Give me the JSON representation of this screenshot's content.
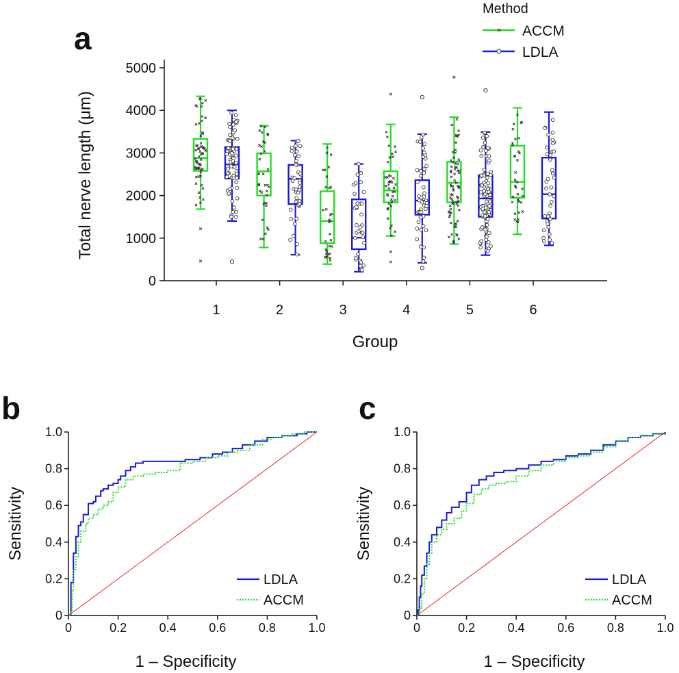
{
  "panel_labels": {
    "a": "a",
    "b": "b",
    "c": "c"
  },
  "colors": {
    "accm": "#22dd22",
    "ldla": "#1a1adb",
    "diag": "#ee2222",
    "axis": "#111111"
  },
  "chart_data": [
    {
      "panel": "a",
      "type": "box",
      "xlabel": "Group",
      "ylabel": "Total nerve length (μm)",
      "ylim": [
        0,
        5000
      ],
      "yticks": [
        0,
        1000,
        2000,
        3000,
        4000,
        5000
      ],
      "categories": [
        "1",
        "2",
        "3",
        "4",
        "5",
        "6"
      ],
      "legend": {
        "title": "Method",
        "placement": "top-right",
        "entries": [
          "ACCM",
          "LDLA"
        ]
      },
      "series": [
        {
          "name": "ACCM",
          "boxes": [
            {
              "whislo": 1680,
              "q1": 2580,
              "med": 2880,
              "q3": 3330,
              "whishi": 4330,
              "fliers": [
                1220,
                460
              ],
              "n": 60
            },
            {
              "whislo": 780,
              "q1": 2000,
              "med": 2570,
              "q3": 2990,
              "whishi": 3640,
              "fliers": [],
              "n": 36
            },
            {
              "whislo": 390,
              "q1": 880,
              "med": 1400,
              "q3": 2100,
              "whishi": 3210,
              "fliers": [],
              "n": 32
            },
            {
              "whislo": 1050,
              "q1": 1840,
              "med": 2120,
              "q3": 2570,
              "whishi": 3670,
              "fliers": [
                4380,
                680,
                440
              ],
              "n": 40
            },
            {
              "whislo": 860,
              "q1": 1840,
              "med": 2300,
              "q3": 2790,
              "whishi": 3840,
              "fliers": [
                4780
              ],
              "n": 75
            },
            {
              "whislo": 1090,
              "q1": 1950,
              "med": 2320,
              "q3": 3170,
              "whishi": 4060,
              "fliers": [],
              "n": 34
            }
          ]
        },
        {
          "name": "LDLA",
          "boxes": [
            {
              "whislo": 1400,
              "q1": 2400,
              "med": 2730,
              "q3": 3140,
              "whishi": 4000,
              "fliers": [
                450
              ],
              "n": 75
            },
            {
              "whislo": 610,
              "q1": 1800,
              "med": 2390,
              "q3": 2720,
              "whishi": 3290,
              "fliers": [],
              "n": 40
            },
            {
              "whislo": 210,
              "q1": 740,
              "med": 1010,
              "q3": 1910,
              "whishi": 2740,
              "fliers": [],
              "n": 34
            },
            {
              "whislo": 420,
              "q1": 1550,
              "med": 1880,
              "q3": 2360,
              "whishi": 3440,
              "fliers": [
                4310,
                300
              ],
              "n": 50
            },
            {
              "whislo": 600,
              "q1": 1500,
              "med": 1930,
              "q3": 2480,
              "whishi": 3490,
              "fliers": [
                4470
              ],
              "n": 90
            },
            {
              "whislo": 830,
              "q1": 1460,
              "med": 2030,
              "q3": 2890,
              "whishi": 3960,
              "fliers": [],
              "n": 40
            }
          ]
        }
      ]
    },
    {
      "panel": "b",
      "type": "line",
      "xlabel": "1 – Specificity",
      "ylabel": "Sensitivity",
      "xlim": [
        0,
        1
      ],
      "ylim": [
        0,
        1
      ],
      "xticks": [
        "0",
        "0.2",
        "0.4",
        "0.6",
        "0.8",
        "1.0"
      ],
      "yticks": [
        "0",
        "0.2",
        "0.4",
        "0.6",
        "0.8",
        "1.0"
      ],
      "legend_placement": "bottom-right",
      "series": [
        {
          "name": "LDLA",
          "style": "solid",
          "x": [
            0,
            0.01,
            0.01,
            0.02,
            0.02,
            0.03,
            0.03,
            0.04,
            0.05,
            0.06,
            0.06,
            0.08,
            0.08,
            0.1,
            0.11,
            0.13,
            0.14,
            0.16,
            0.18,
            0.2,
            0.21,
            0.23,
            0.25,
            0.27,
            0.3,
            0.33,
            0.37,
            0.42,
            0.47,
            0.53,
            0.58,
            0.62,
            0.66,
            0.7,
            0.75,
            0.8,
            0.86,
            0.92,
            0.96,
            1.0
          ],
          "y": [
            0,
            0.03,
            0.18,
            0.25,
            0.34,
            0.36,
            0.43,
            0.49,
            0.51,
            0.53,
            0.55,
            0.59,
            0.61,
            0.62,
            0.65,
            0.68,
            0.69,
            0.71,
            0.72,
            0.74,
            0.76,
            0.79,
            0.81,
            0.83,
            0.84,
            0.84,
            0.84,
            0.84,
            0.85,
            0.86,
            0.88,
            0.89,
            0.91,
            0.93,
            0.95,
            0.97,
            0.98,
            0.99,
            1.0,
            1.0
          ]
        },
        {
          "name": "ACCM",
          "style": "dotted",
          "x": [
            0,
            0.01,
            0.015,
            0.02,
            0.03,
            0.04,
            0.05,
            0.07,
            0.08,
            0.1,
            0.12,
            0.14,
            0.16,
            0.18,
            0.2,
            0.23,
            0.26,
            0.3,
            0.35,
            0.4,
            0.45,
            0.5,
            0.55,
            0.6,
            0.64,
            0.68,
            0.73,
            0.78,
            0.82,
            0.86,
            0.9,
            0.95,
            1.0
          ],
          "y": [
            0,
            0.02,
            0.14,
            0.25,
            0.32,
            0.4,
            0.46,
            0.5,
            0.53,
            0.55,
            0.58,
            0.6,
            0.62,
            0.67,
            0.7,
            0.74,
            0.76,
            0.77,
            0.78,
            0.79,
            0.83,
            0.84,
            0.86,
            0.87,
            0.89,
            0.9,
            0.93,
            0.96,
            0.97,
            0.98,
            0.99,
            1.0,
            1.0
          ]
        },
        {
          "name": "reference",
          "style": "diagonal",
          "x": [
            0,
            1
          ],
          "y": [
            0,
            1
          ]
        }
      ]
    },
    {
      "panel": "c",
      "type": "line",
      "xlabel": "1 – Specificity",
      "ylabel": "Sensitivity",
      "xlim": [
        0,
        1
      ],
      "ylim": [
        0,
        1
      ],
      "xticks": [
        "0",
        "0.2",
        "0.4",
        "0.6",
        "0.8",
        "1.0"
      ],
      "yticks": [
        "0",
        "0.2",
        "0.4",
        "0.6",
        "0.8",
        "1.0"
      ],
      "legend_placement": "bottom-right",
      "series": [
        {
          "name": "LDLA",
          "style": "solid",
          "x": [
            0,
            0.005,
            0.01,
            0.015,
            0.02,
            0.03,
            0.04,
            0.05,
            0.06,
            0.08,
            0.1,
            0.12,
            0.14,
            0.17,
            0.2,
            0.22,
            0.25,
            0.28,
            0.31,
            0.35,
            0.4,
            0.45,
            0.5,
            0.55,
            0.6,
            0.65,
            0.7,
            0.75,
            0.8,
            0.85,
            0.9,
            0.95,
            1.0
          ],
          "y": [
            0,
            0.03,
            0.1,
            0.16,
            0.22,
            0.27,
            0.34,
            0.4,
            0.44,
            0.48,
            0.52,
            0.56,
            0.59,
            0.62,
            0.67,
            0.71,
            0.74,
            0.76,
            0.78,
            0.79,
            0.8,
            0.82,
            0.84,
            0.85,
            0.87,
            0.88,
            0.9,
            0.93,
            0.95,
            0.97,
            0.98,
            0.99,
            1.0
          ]
        },
        {
          "name": "ACCM",
          "style": "dotted",
          "x": [
            0,
            0.01,
            0.02,
            0.03,
            0.04,
            0.05,
            0.06,
            0.08,
            0.1,
            0.12,
            0.15,
            0.18,
            0.2,
            0.23,
            0.26,
            0.29,
            0.32,
            0.36,
            0.4,
            0.45,
            0.5,
            0.55,
            0.6,
            0.65,
            0.7,
            0.75,
            0.8,
            0.85,
            0.9,
            0.95,
            1.0
          ],
          "y": [
            0,
            0.04,
            0.12,
            0.2,
            0.28,
            0.34,
            0.4,
            0.44,
            0.47,
            0.5,
            0.53,
            0.57,
            0.61,
            0.66,
            0.69,
            0.71,
            0.72,
            0.73,
            0.76,
            0.79,
            0.82,
            0.84,
            0.86,
            0.87,
            0.89,
            0.92,
            0.95,
            0.97,
            0.98,
            0.99,
            1.0
          ]
        },
        {
          "name": "reference",
          "style": "diagonal",
          "x": [
            0,
            1
          ],
          "y": [
            0,
            1
          ]
        }
      ]
    }
  ]
}
